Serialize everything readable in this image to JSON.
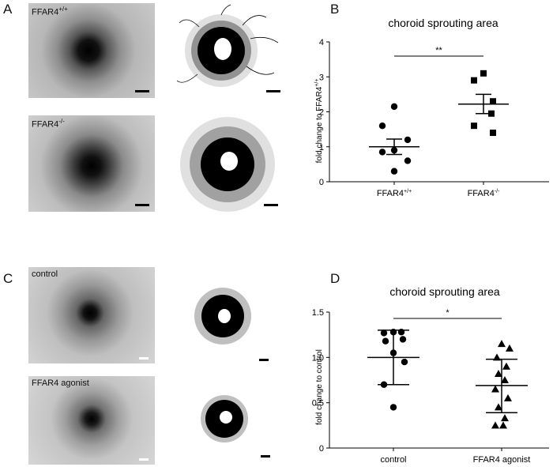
{
  "panels": {
    "A": {
      "letter": "A",
      "photos": [
        {
          "label_main": "FFAR4",
          "label_sup": "+/+"
        },
        {
          "label_main": "FFAR4",
          "label_sup": "-/-"
        }
      ]
    },
    "B": {
      "letter": "B"
    },
    "C": {
      "letter": "C",
      "photos": [
        {
          "label_main": "control"
        },
        {
          "label_main": "FFAR4 agonist"
        }
      ]
    },
    "D": {
      "letter": "D"
    }
  },
  "chart_data": [
    {
      "type": "scatter",
      "panel": "B",
      "title": "choroid sprouting area",
      "ylabel": "fold change to FFAR4",
      "ylabel_sup": "+/+",
      "ylim": [
        0,
        4
      ],
      "yticks": [
        0,
        1,
        2,
        3,
        4
      ],
      "categories": [
        "FFAR4+/+",
        "FFAR4-/-"
      ],
      "category_labels": [
        {
          "main": "FFAR4",
          "sup": "+/+"
        },
        {
          "main": "FFAR4",
          "sup": "-/-"
        }
      ],
      "markers": [
        "circle",
        "square"
      ],
      "series": [
        {
          "values": [
            2.15,
            1.6,
            1.2,
            0.9,
            0.85,
            0.6,
            0.3
          ],
          "mean": 1.0,
          "sem_low": 0.78,
          "sem_high": 1.22
        },
        {
          "values": [
            3.1,
            2.9,
            2.3,
            1.95,
            1.6,
            1.4
          ],
          "mean": 2.22,
          "sem_low": 1.95,
          "sem_high": 2.5
        }
      ],
      "significance": "**"
    },
    {
      "type": "scatter",
      "panel": "D",
      "title": "choroid sprouting area",
      "ylabel": "fold change to control",
      "ylim": [
        0,
        1.5
      ],
      "yticks": [
        0,
        0.5,
        1.0,
        1.5
      ],
      "ytick_labels": [
        "0",
        "0.5",
        "1.0",
        "1.5"
      ],
      "categories": [
        "control",
        "FFAR4 agonist"
      ],
      "markers": [
        "circle",
        "triangle"
      ],
      "series": [
        {
          "values": [
            1.28,
            1.28,
            1.27,
            1.2,
            1.18,
            1.05,
            0.95,
            0.7,
            0.45
          ],
          "mean": 1.0,
          "sd_low": 0.7,
          "sd_high": 1.3
        },
        {
          "values": [
            1.15,
            1.1,
            1.0,
            0.9,
            0.82,
            0.75,
            0.65,
            0.55,
            0.45,
            0.33,
            0.25,
            0.25
          ],
          "mean": 0.69,
          "sd_low": 0.39,
          "sd_high": 0.98
        }
      ],
      "significance": "*"
    }
  ]
}
